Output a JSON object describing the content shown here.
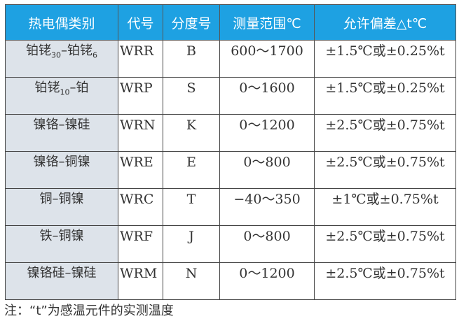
{
  "headers": [
    "热电偶类别",
    "代号",
    "分度号",
    "测量范围℃",
    "允许偏差△t℃"
  ],
  "rows": [
    {
      "type_main": "铂铑",
      "sub1": "30",
      "mid": "–铂铑",
      "sub2": "6",
      "code": "WRR",
      "grad": "B",
      "range": "600～1700",
      "tol": "±1.5℃或±0.25%t"
    },
    {
      "type_main": "铂铑",
      "sub1": "10",
      "mid": "–铂",
      "sub2": "",
      "code": "WRP",
      "grad": "S",
      "range": "0～1600",
      "tol": "±1.5℃或±0.25%t"
    },
    {
      "type_main": "镍铬–镍硅",
      "sub1": "",
      "mid": "",
      "sub2": "",
      "code": "WRN",
      "grad": "K",
      "range": "0～1200",
      "tol": "±2.5℃或±0.75%t"
    },
    {
      "type_main": "镍铬–铜镍",
      "sub1": "",
      "mid": "",
      "sub2": "",
      "code": "WRE",
      "grad": "E",
      "range": "0～800",
      "tol": "±2.5℃或±0.75%t"
    },
    {
      "type_main": "铜–铜镍",
      "sub1": "",
      "mid": "",
      "sub2": "",
      "code": "WRC",
      "grad": "T",
      "range": "−40～350",
      "tol": "±1℃或±0.75%t"
    },
    {
      "type_main": "铁–铜镍",
      "sub1": "",
      "mid": "",
      "sub2": "",
      "code": "WRF",
      "grad": "J",
      "range": "0～800",
      "tol": "±2.5℃或±0.75%t"
    },
    {
      "type_main": "镍铬硅–镍硅",
      "sub1": "",
      "mid": "",
      "sub2": "",
      "code": "WRM",
      "grad": "N",
      "range": "0～1200",
      "tol": "±2.5℃或±0.75%t"
    }
  ],
  "note": "注：“t”为感温元件的实测温度"
}
